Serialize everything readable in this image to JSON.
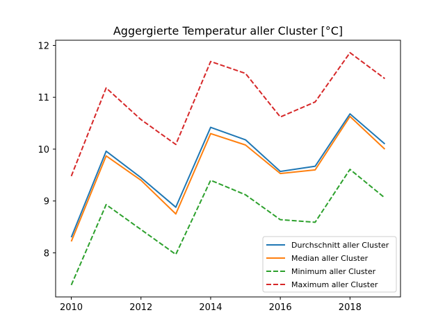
{
  "chart_data": {
    "type": "line",
    "title": "Aggergierte Temperatur aller Cluster [°C]",
    "xlabel": "",
    "ylabel": "",
    "x": [
      2010,
      2011,
      2012,
      2013,
      2014,
      2015,
      2016,
      2017,
      2018,
      2019
    ],
    "xlim": [
      2009.55,
      2019.45
    ],
    "ylim": [
      7.15,
      12.1
    ],
    "xticks": [
      2010,
      2012,
      2014,
      2016,
      2018
    ],
    "yticks": [
      8,
      9,
      10,
      11,
      12
    ],
    "grid": false,
    "legend_position": "lower-right",
    "series": [
      {
        "name": "Durchschnitt aller Cluster",
        "color": "#1f77b4",
        "style": "solid",
        "values": [
          8.3,
          9.96,
          9.45,
          8.88,
          10.42,
          10.18,
          9.57,
          9.67,
          10.68,
          10.1
        ]
      },
      {
        "name": "Median aller Cluster",
        "color": "#ff7f0e",
        "style": "solid",
        "values": [
          8.22,
          9.87,
          9.4,
          8.75,
          10.3,
          10.08,
          9.53,
          9.6,
          10.63,
          10.0
        ]
      },
      {
        "name": "Minimum aller Cluster",
        "color": "#2ca02c",
        "style": "dashed",
        "values": [
          7.38,
          8.93,
          8.45,
          7.97,
          9.4,
          9.12,
          8.64,
          8.59,
          9.61,
          9.06
        ]
      },
      {
        "name": "Maximum aller Cluster",
        "color": "#d62728",
        "style": "dashed",
        "values": [
          9.48,
          11.18,
          10.57,
          10.09,
          11.69,
          11.46,
          10.62,
          10.91,
          11.86,
          11.36
        ]
      }
    ]
  }
}
